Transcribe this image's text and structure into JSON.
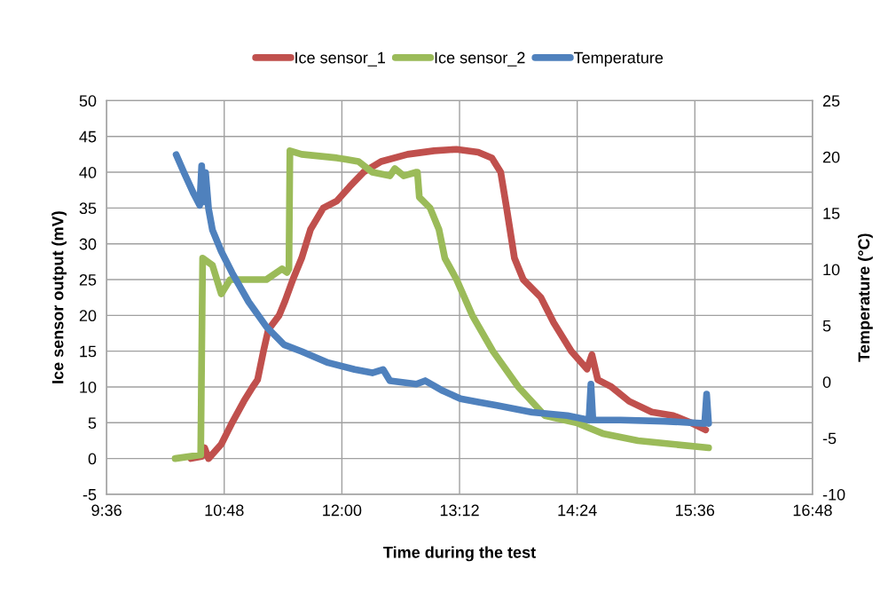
{
  "chart_data": {
    "type": "line",
    "xlabel": "Time during the test",
    "ylabel": "Ice sensor output (mV)",
    "y2label": "Temperature (°C)",
    "xlim": [
      9.6,
      16.8
    ],
    "xticks": [
      {
        "value": 9.6,
        "label": "9:36"
      },
      {
        "value": 10.8,
        "label": "10:48"
      },
      {
        "value": 12.0,
        "label": "12:00"
      },
      {
        "value": 13.2,
        "label": "13:12"
      },
      {
        "value": 14.4,
        "label": "14:24"
      },
      {
        "value": 15.6,
        "label": "15:36"
      },
      {
        "value": 16.8,
        "label": "16:48"
      }
    ],
    "ylim": [
      -5,
      50
    ],
    "yticks": [
      -5,
      0,
      5,
      10,
      15,
      20,
      25,
      30,
      35,
      40,
      45,
      50
    ],
    "y2lim": [
      -10,
      25
    ],
    "y2ticks": [
      -10,
      -5,
      0,
      5,
      10,
      15,
      20,
      25
    ],
    "grid": true,
    "legend": "top",
    "marker": "none",
    "line_style": "solid",
    "series": [
      {
        "name": "Ice sensor_1",
        "color": "#c0504d",
        "x": [
          10.46,
          10.57,
          10.6,
          10.64,
          10.77,
          10.88,
          11.0,
          11.09,
          11.14,
          11.2,
          11.25,
          11.36,
          11.42,
          11.5,
          11.59,
          11.68,
          11.81,
          11.95,
          12.08,
          12.22,
          12.4,
          12.67,
          12.94,
          13.17,
          13.39,
          13.53,
          13.62,
          13.68,
          13.76,
          13.85,
          14.03,
          14.16,
          14.34,
          14.5,
          14.55,
          14.61,
          14.75,
          14.93,
          15.16,
          15.38,
          15.56,
          15.71
        ],
        "values": [
          0,
          0.3,
          1.5,
          0,
          2,
          5,
          8,
          10,
          11,
          15,
          18,
          20,
          22,
          25,
          28,
          32,
          35,
          36,
          38,
          40,
          41.5,
          42.5,
          43,
          43.2,
          42.8,
          42,
          40,
          35,
          28,
          25,
          22.5,
          19,
          15,
          12.5,
          14.5,
          11,
          10,
          8,
          6.5,
          6,
          5,
          4
        ]
      },
      {
        "name": "Ice sensor_2",
        "color": "#9bbb59",
        "x": [
          10.3,
          10.56,
          10.58,
          10.68,
          10.77,
          10.86,
          11.23,
          11.39,
          11.44,
          11.46,
          11.47,
          11.59,
          11.95,
          12.04,
          12.17,
          12.31,
          12.49,
          12.54,
          12.63,
          12.76,
          12.77,
          12.79,
          12.9,
          12.99,
          13.05,
          13.17,
          13.33,
          13.54,
          13.8,
          14.07,
          14.39,
          14.66,
          15.02,
          15.38,
          15.74
        ],
        "values": [
          0,
          0.5,
          28,
          27,
          23,
          25,
          25,
          26.5,
          26,
          26.5,
          43,
          42.5,
          42,
          41.8,
          41.5,
          40,
          39.5,
          40.5,
          39.5,
          40,
          40,
          36.5,
          35,
          32,
          28,
          25,
          20,
          15,
          10,
          6,
          5,
          3.5,
          2.5,
          2,
          1.5
        ]
      },
      {
        "name": "Temperature",
        "color": "#4f81bd",
        "axis": "y2",
        "x": [
          10.31,
          10.39,
          10.49,
          10.55,
          10.57,
          10.59,
          10.61,
          10.64,
          10.68,
          10.77,
          10.88,
          11.05,
          11.23,
          11.41,
          11.59,
          11.86,
          12.13,
          12.31,
          12.42,
          12.49,
          12.76,
          12.85,
          13.03,
          13.21,
          13.39,
          13.58,
          13.94,
          14.3,
          14.52,
          14.54,
          14.56,
          14.84,
          15.29,
          15.7,
          15.72,
          15.74
        ],
        "values": [
          20.2,
          18.6,
          16.7,
          15.7,
          19.2,
          16.0,
          18.6,
          15.4,
          13.5,
          11.6,
          9.7,
          7.1,
          4.9,
          3.3,
          2.7,
          1.7,
          1.1,
          0.8,
          1.1,
          0.1,
          -0.2,
          0.1,
          -0.8,
          -1.5,
          -1.8,
          -2.1,
          -2.7,
          -3.0,
          -3.4,
          -0.2,
          -3.4,
          -3.4,
          -3.5,
          -3.7,
          -1.1,
          -3.7
        ]
      }
    ]
  }
}
